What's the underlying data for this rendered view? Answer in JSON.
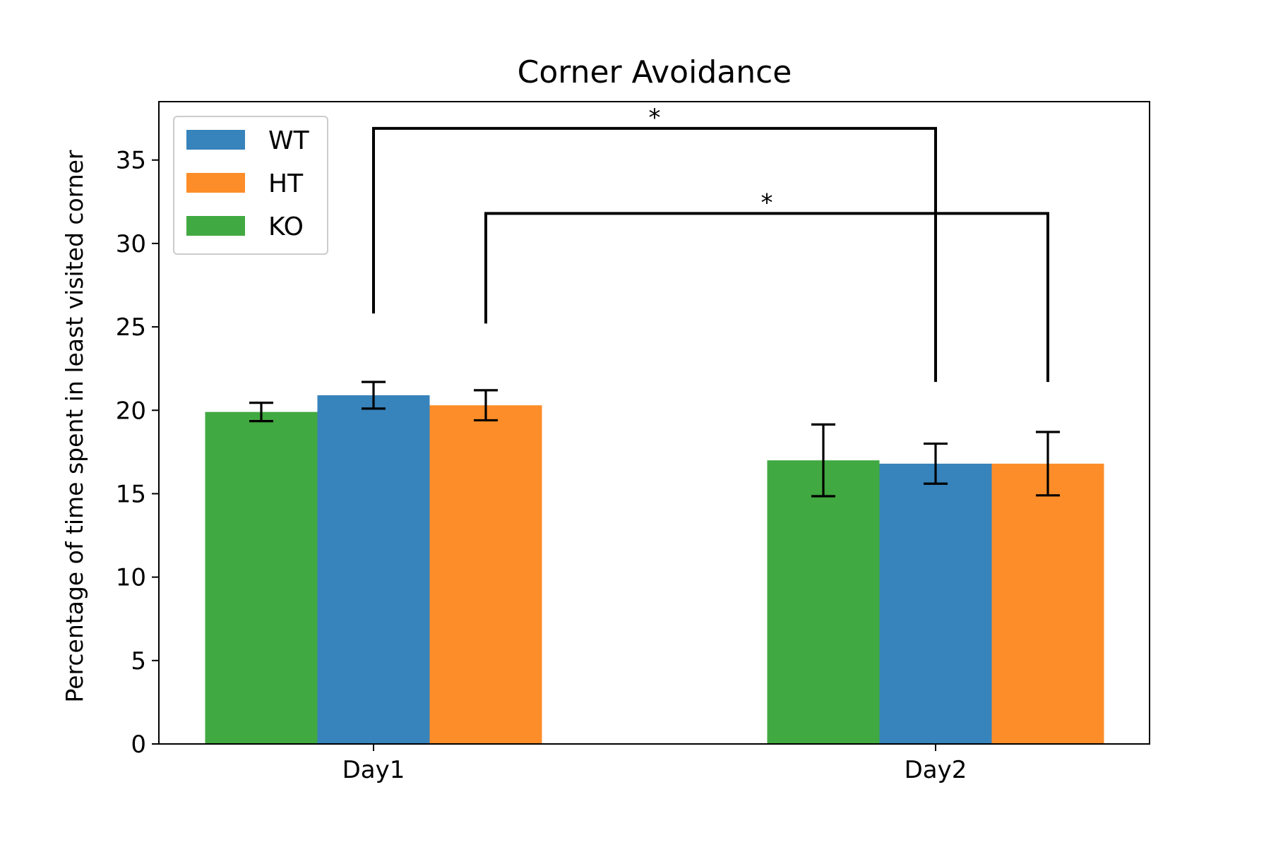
{
  "chart_data": {
    "type": "bar",
    "title": "Corner Avoidance",
    "xlabel": "",
    "ylabel": "Percentage of time spent in least visited corner",
    "categories": [
      "Day1",
      "Day2"
    ],
    "series": [
      {
        "name": "WT",
        "color": "#3783bb",
        "values": [
          20.9,
          16.8
        ],
        "errors": [
          0.8,
          1.2
        ]
      },
      {
        "name": "HT",
        "color": "#fd8d29",
        "values": [
          20.3,
          16.8
        ],
        "errors": [
          0.9,
          1.9
        ]
      },
      {
        "name": "KO",
        "color": "#41a941",
        "values": [
          19.9,
          17.0
        ],
        "errors": [
          0.55,
          2.15
        ]
      }
    ],
    "bar_order": [
      "KO",
      "WT",
      "HT"
    ],
    "ylim": [
      0,
      38.5
    ],
    "yticks": [
      0,
      5,
      10,
      15,
      20,
      25,
      30,
      35
    ],
    "legend": {
      "placement": "top-left",
      "entries": [
        "WT",
        "HT",
        "KO"
      ]
    },
    "grid": false,
    "annotations": [
      {
        "text": "*",
        "from_category": "Day1",
        "from_series": "WT",
        "to_category": "Day2",
        "to_series": "WT",
        "bracket_y": 36.9,
        "left_bottom": 25.8,
        "right_bottom": 21.7
      },
      {
        "text": "*",
        "from_category": "Day1",
        "from_series": "HT",
        "to_category": "Day2",
        "to_series": "HT",
        "bracket_y": 31.8,
        "left_bottom": 25.2,
        "right_bottom": 21.7
      }
    ]
  }
}
